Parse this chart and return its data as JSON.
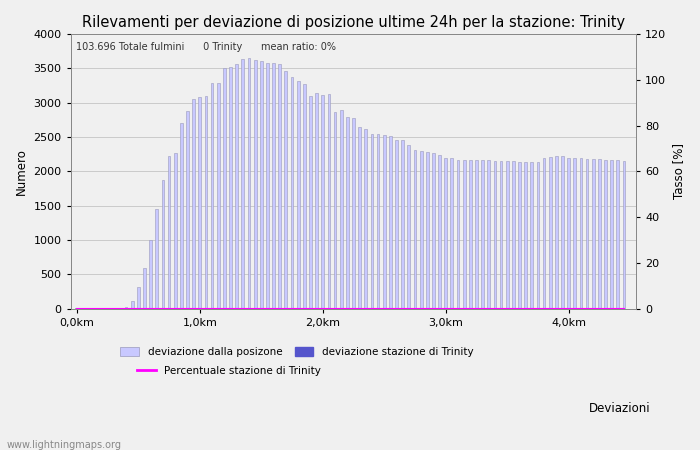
{
  "title": "Rilevamenti per deviazione di posizione ultime 24h per la stazione: Trinity",
  "xlabel": "Deviazioni",
  "ylabel_left": "Numero",
  "ylabel_right": "Tasso [%]",
  "annotation": "103.696 Totale fulmini      0 Trinity      mean ratio: 0%",
  "watermark": "www.lightningmaps.org",
  "xtick_labels": [
    "0,0km",
    "1,0km",
    "2,0km",
    "3,0km",
    "4,0km"
  ],
  "xtick_positions": [
    0,
    20,
    40,
    60,
    80
  ],
  "ylim_left": [
    0,
    4000
  ],
  "ylim_right": [
    0,
    120
  ],
  "bar_color": "#c8c8ff",
  "bar_edge_color": "#9999bb",
  "trinity_color": "#5555cc",
  "line_color": "#ff00ff",
  "bar_width": 0.45,
  "values": [
    5,
    5,
    5,
    5,
    8,
    8,
    10,
    15,
    20,
    110,
    320,
    600,
    1000,
    1450,
    1870,
    2230,
    2260,
    2700,
    2880,
    3060,
    3080,
    3090,
    3280,
    3280,
    3500,
    3520,
    3560,
    3630,
    3650,
    3620,
    3610,
    3580,
    3580,
    3560,
    3460,
    3380,
    3310,
    3270,
    3090,
    3140,
    3110,
    3120,
    2870,
    2900,
    2790,
    2780,
    2650,
    2620,
    2550,
    2550,
    2530,
    2520,
    2460,
    2450,
    2380,
    2310,
    2300,
    2280,
    2260,
    2240,
    2200,
    2190,
    2170,
    2160,
    2160,
    2160,
    2165,
    2160,
    2155,
    2150,
    2150,
    2145,
    2140,
    2135,
    2130,
    2140,
    2200,
    2210,
    2220,
    2230,
    2200,
    2200,
    2190,
    2185,
    2180,
    2175,
    2170,
    2165,
    2160,
    2155
  ],
  "trinity_values": [
    0,
    0,
    0,
    0,
    0,
    0,
    0,
    0,
    0,
    0,
    0,
    0,
    0,
    0,
    0,
    0,
    0,
    0,
    0,
    0,
    0,
    0,
    0,
    0,
    0,
    0,
    0,
    0,
    0,
    0,
    0,
    0,
    0,
    0,
    0,
    0,
    0,
    0,
    0,
    0,
    0,
    0,
    0,
    0,
    0,
    0,
    0,
    0,
    0,
    0,
    0,
    0,
    0,
    0,
    0,
    0,
    0,
    0,
    0,
    0,
    0,
    0,
    0,
    0,
    0,
    0,
    0,
    0,
    0,
    0,
    0,
    0,
    0,
    0,
    0,
    0,
    0,
    0,
    0,
    0,
    0,
    0,
    0,
    0,
    0,
    0,
    0,
    0,
    0,
    0
  ],
  "percent_values": [
    0,
    0,
    0,
    0,
    0,
    0,
    0,
    0,
    0,
    0,
    0,
    0,
    0,
    0,
    0,
    0,
    0,
    0,
    0,
    0,
    0,
    0,
    0,
    0,
    0,
    0,
    0,
    0,
    0,
    0,
    0,
    0,
    0,
    0,
    0,
    0,
    0,
    0,
    0,
    0,
    0,
    0,
    0,
    0,
    0,
    0,
    0,
    0,
    0,
    0,
    0,
    0,
    0,
    0,
    0,
    0,
    0,
    0,
    0,
    0,
    0,
    0,
    0,
    0,
    0,
    0,
    0,
    0,
    0,
    0,
    0,
    0,
    0,
    0,
    0,
    0,
    0,
    0,
    0,
    0,
    0,
    0,
    0,
    0,
    0,
    0,
    0,
    0,
    0,
    0
  ],
  "legend_label_1": "deviazione dalla posizone",
  "legend_label_2": "deviazione stazione di Trinity",
  "legend_label_3": "Percentuale stazione di Trinity",
  "bg_color": "#f0f0f0",
  "title_fontsize": 10.5,
  "label_fontsize": 8.5,
  "tick_fontsize": 8
}
